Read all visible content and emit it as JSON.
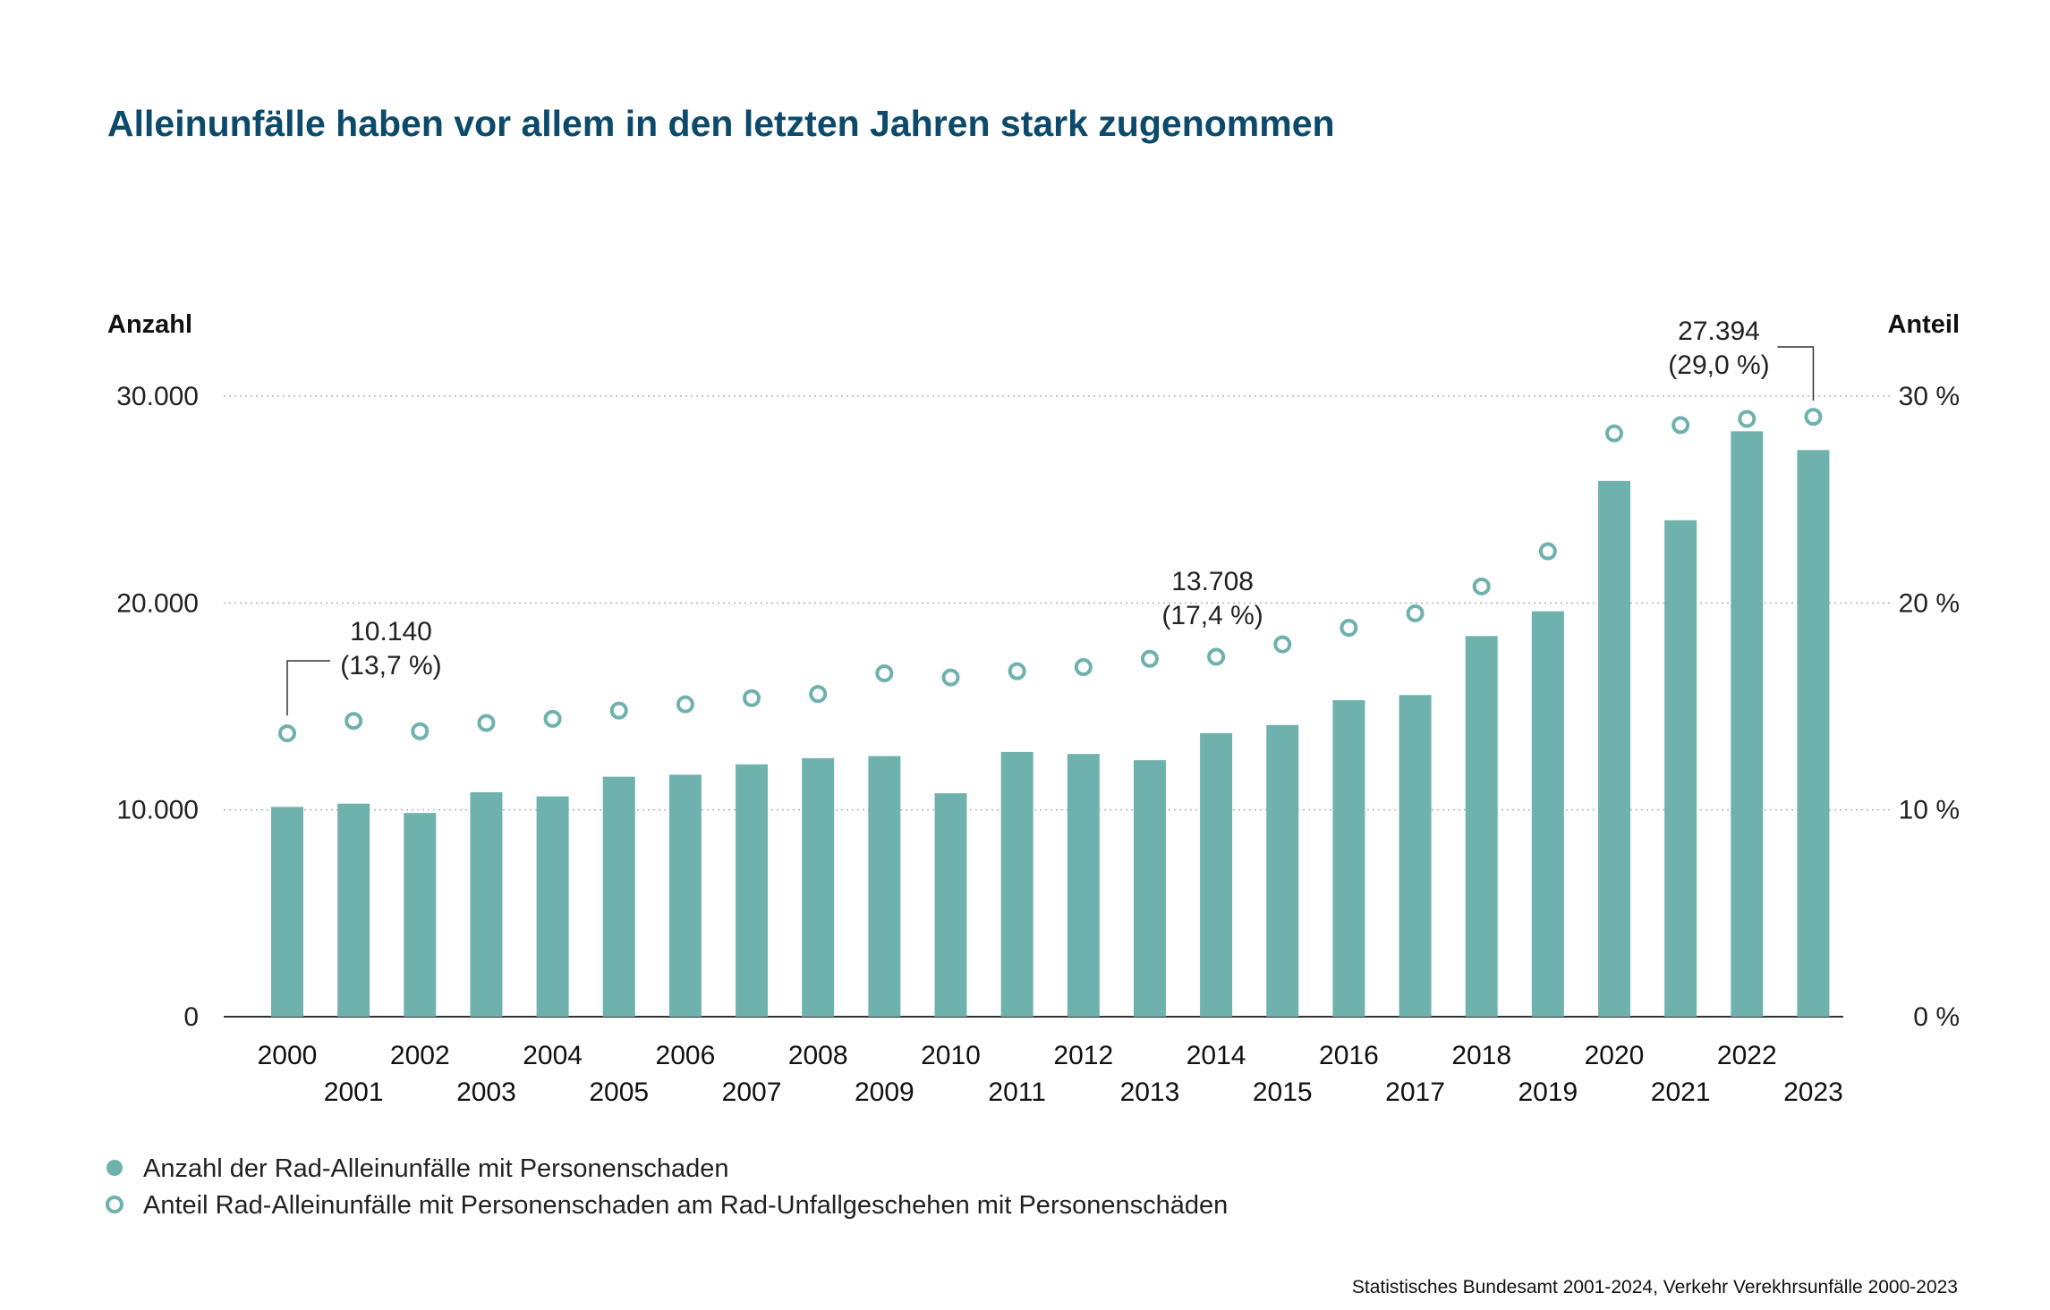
{
  "title": "Alleinunfälle haben vor allem in den letzten Jahren stark zugenommen",
  "left_axis_title": "Anzahl",
  "right_axis_title": "Anteil",
  "left_ticks": [
    "0",
    "10.000",
    "20.000",
    "30.000"
  ],
  "right_ticks": [
    "0 %",
    "10 %",
    "20 %",
    "30 %"
  ],
  "annotations": [
    {
      "index": 0,
      "value": "10.140",
      "share": "(13,7 %)"
    },
    {
      "index": 14,
      "value": "13.708",
      "share": "(17,4 %)"
    },
    {
      "index": 23,
      "value": "27.394",
      "share": "(29,0 %)"
    }
  ],
  "legend": {
    "bars": "Anzahl der Rad-Alleinunfälle mit Personenschaden",
    "dots": "Anteil Rad-Alleinunfälle mit Personenschaden am Rad-Unfallgeschehen mit Personenschäden"
  },
  "source": "Statistisches Bundesamt 2001-2024, Verkehr Verekhrsunfälle 2000-2023",
  "colors": {
    "bar": "#6fb2ad",
    "dot": "#6fb2ad",
    "title": "#0b4a6b",
    "grid": "#b5b5b5"
  },
  "chart_data": {
    "type": "bar",
    "categories": [
      "2000",
      "2001",
      "2002",
      "2003",
      "2004",
      "2005",
      "2006",
      "2007",
      "2008",
      "2009",
      "2010",
      "2011",
      "2012",
      "2013",
      "2014",
      "2015",
      "2016",
      "2017",
      "2018",
      "2019",
      "2020",
      "2021",
      "2022",
      "2023"
    ],
    "series": [
      {
        "name": "Anzahl der Rad-Alleinunfälle mit Personenschaden",
        "axis": "left",
        "type": "bar",
        "values": [
          10140,
          10300,
          9850,
          10850,
          10650,
          11600,
          11700,
          12200,
          12500,
          12600,
          10800,
          12800,
          12700,
          12400,
          13708,
          14100,
          15300,
          15550,
          18400,
          19600,
          25900,
          24000,
          28300,
          27394
        ]
      },
      {
        "name": "Anteil Rad-Alleinunfälle mit Personenschaden am Rad-Unfallgeschehen mit Personenschäden",
        "axis": "right",
        "type": "scatter",
        "values": [
          13.7,
          14.3,
          13.8,
          14.2,
          14.4,
          14.8,
          15.1,
          15.4,
          15.6,
          16.6,
          16.4,
          16.7,
          16.9,
          17.3,
          17.4,
          18.0,
          18.8,
          19.5,
          20.8,
          22.5,
          28.2,
          28.6,
          28.9,
          29.0
        ]
      }
    ],
    "ylim_left": [
      0,
      30000
    ],
    "ylim_right": [
      0,
      30
    ],
    "grid": true,
    "legend_position": "bottom-left"
  }
}
